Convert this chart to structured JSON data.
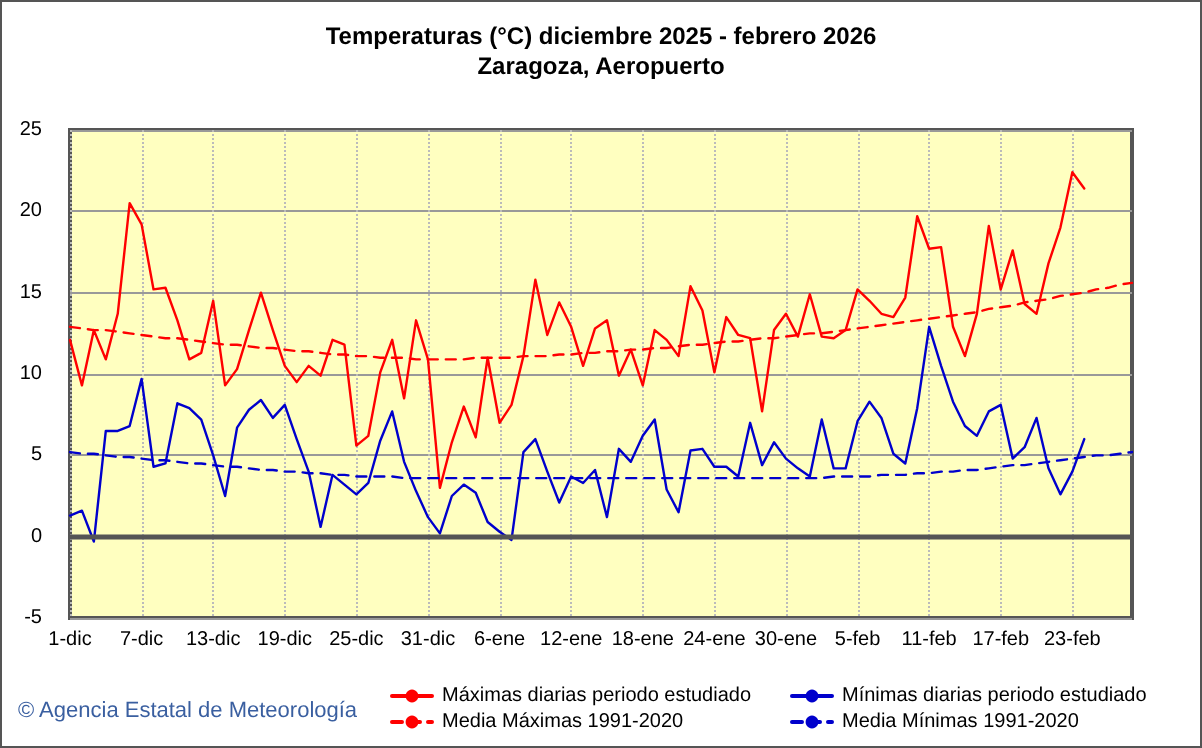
{
  "chart_data": {
    "type": "line",
    "title": "Temperaturas (°C) diciembre 2025 - febrero 2026",
    "subtitle": "Zaragoza, Aeropuerto",
    "categories": [
      "1-dic",
      null,
      null,
      null,
      null,
      null,
      "7-dic",
      null,
      null,
      null,
      null,
      null,
      "13-dic",
      null,
      null,
      null,
      null,
      null,
      "19-dic",
      null,
      null,
      null,
      null,
      null,
      "25-dic",
      null,
      null,
      null,
      null,
      null,
      "31-dic",
      null,
      null,
      null,
      null,
      null,
      "6-ene",
      null,
      null,
      null,
      null,
      null,
      "12-ene",
      null,
      null,
      null,
      null,
      null,
      "18-ene",
      null,
      null,
      null,
      null,
      null,
      "24-ene",
      null,
      null,
      null,
      null,
      null,
      "30-ene",
      null,
      null,
      null,
      null,
      null,
      "5-feb",
      null,
      null,
      null,
      null,
      null,
      "11-feb",
      null,
      null,
      null,
      null,
      null,
      "17-feb",
      null,
      null,
      null,
      null,
      null,
      "23-feb",
      null,
      null,
      null,
      null,
      null
    ],
    "series": [
      {
        "name": "Máximas diarias periodo estudiado",
        "color": "#ff0000",
        "line_style": "solid",
        "values": [
          12.1,
          9.3,
          12.7,
          10.9,
          13.7,
          20.5,
          19.2,
          15.2,
          15.3,
          13.3,
          10.9,
          11.3,
          14.5,
          9.3,
          10.3,
          12.7,
          15.0,
          12.7,
          10.5,
          9.5,
          10.5,
          9.9,
          12.1,
          11.8,
          5.6,
          6.2,
          10.1,
          12.1,
          8.5,
          13.3,
          10.9,
          3.0,
          5.8,
          8.0,
          6.1,
          11.0,
          7.0,
          8.1,
          11.1,
          15.8,
          12.4,
          14.4,
          12.9,
          10.5,
          12.8,
          13.3,
          9.9,
          11.5,
          9.3,
          12.7,
          12.1,
          11.1,
          15.4,
          13.9,
          10.1,
          13.5,
          12.4,
          12.2,
          7.7,
          12.7,
          13.7,
          12.3,
          14.9,
          12.3,
          12.2,
          12.7,
          15.2,
          14.5,
          13.7,
          13.5,
          14.7,
          19.7,
          17.7,
          17.8,
          12.9,
          11.1,
          13.7,
          19.1,
          15.2,
          17.6,
          14.3,
          13.7,
          16.8,
          19.0,
          22.4,
          21.4,
          null,
          null,
          null,
          null
        ]
      },
      {
        "name": "Mínimas diarias periodo estudiado",
        "color": "#0000cc",
        "line_style": "solid",
        "values": [
          1.3,
          1.6,
          -0.3,
          6.5,
          6.5,
          6.8,
          9.7,
          4.3,
          4.5,
          8.2,
          7.9,
          7.2,
          5.0,
          2.5,
          6.7,
          7.8,
          8.4,
          7.3,
          8.1,
          6.0,
          4.0,
          0.6,
          3.8,
          3.2,
          2.6,
          3.3,
          5.9,
          7.7,
          4.6,
          2.8,
          1.2,
          0.2,
          2.5,
          3.2,
          2.7,
          0.9,
          0.3,
          -0.2,
          5.2,
          6.0,
          4.0,
          2.1,
          3.7,
          3.3,
          4.1,
          1.2,
          5.4,
          4.6,
          6.2,
          7.2,
          2.9,
          1.5,
          5.3,
          5.4,
          4.3,
          4.3,
          3.7,
          7.0,
          4.4,
          5.8,
          4.8,
          4.2,
          3.7,
          7.2,
          4.2,
          4.2,
          7.1,
          8.3,
          7.3,
          5.1,
          4.5,
          7.9,
          12.9,
          10.5,
          8.3,
          6.8,
          6.2,
          7.7,
          8.1,
          4.8,
          5.5,
          7.3,
          4.2,
          2.6,
          4.0,
          6.0,
          null,
          null,
          null,
          null
        ]
      },
      {
        "name": "Media Máximas 1991-2020",
        "color": "#ff0000",
        "line_style": "dashed",
        "values": [
          12.9,
          12.8,
          12.7,
          12.7,
          12.6,
          12.5,
          12.4,
          12.3,
          12.2,
          12.2,
          12.1,
          12.0,
          11.9,
          11.8,
          11.8,
          11.7,
          11.6,
          11.6,
          11.5,
          11.4,
          11.4,
          11.3,
          11.2,
          11.2,
          11.1,
          11.1,
          11.0,
          11.0,
          11.0,
          10.9,
          10.9,
          10.9,
          10.9,
          10.9,
          11.0,
          11.0,
          11.0,
          11.0,
          11.1,
          11.1,
          11.1,
          11.2,
          11.2,
          11.3,
          11.3,
          11.4,
          11.4,
          11.5,
          11.5,
          11.6,
          11.6,
          11.7,
          11.8,
          11.8,
          11.9,
          12.0,
          12.0,
          12.1,
          12.2,
          12.2,
          12.3,
          12.4,
          12.5,
          12.5,
          12.6,
          12.7,
          12.8,
          12.9,
          13.0,
          13.1,
          13.2,
          13.3,
          13.4,
          13.5,
          13.6,
          13.7,
          13.8,
          14.0,
          14.1,
          14.2,
          14.4,
          14.5,
          14.6,
          14.8,
          14.9,
          15.0,
          15.2,
          15.3,
          15.5,
          15.6
        ]
      },
      {
        "name": "Media Mínimas 1991-2020",
        "color": "#0000cc",
        "line_style": "dashed",
        "values": [
          5.2,
          5.1,
          5.1,
          5.0,
          4.9,
          4.9,
          4.8,
          4.7,
          4.7,
          4.6,
          4.5,
          4.5,
          4.4,
          4.3,
          4.3,
          4.2,
          4.1,
          4.1,
          4.0,
          4.0,
          3.9,
          3.9,
          3.8,
          3.8,
          3.7,
          3.7,
          3.7,
          3.7,
          3.6,
          3.6,
          3.6,
          3.6,
          3.6,
          3.6,
          3.6,
          3.6,
          3.6,
          3.6,
          3.6,
          3.6,
          3.6,
          3.6,
          3.6,
          3.6,
          3.6,
          3.6,
          3.6,
          3.6,
          3.6,
          3.6,
          3.6,
          3.6,
          3.6,
          3.6,
          3.6,
          3.6,
          3.6,
          3.6,
          3.6,
          3.6,
          3.6,
          3.6,
          3.6,
          3.6,
          3.7,
          3.7,
          3.7,
          3.7,
          3.8,
          3.8,
          3.8,
          3.9,
          3.9,
          4.0,
          4.0,
          4.1,
          4.1,
          4.2,
          4.3,
          4.4,
          4.4,
          4.5,
          4.6,
          4.7,
          4.8,
          4.9,
          5.0,
          5.0,
          5.1,
          5.2
        ]
      }
    ],
    "ylim": [
      -5,
      25
    ],
    "yticks": [
      -5,
      0,
      5,
      10,
      15,
      20,
      25
    ],
    "grid": true,
    "legend": "bottom",
    "marker": "none",
    "ref_lines": [
      {
        "axis": "y",
        "value": 0,
        "color": "#555555"
      }
    ],
    "annotations": [
      "© Agencia Estatal de Meteorología"
    ]
  }
}
